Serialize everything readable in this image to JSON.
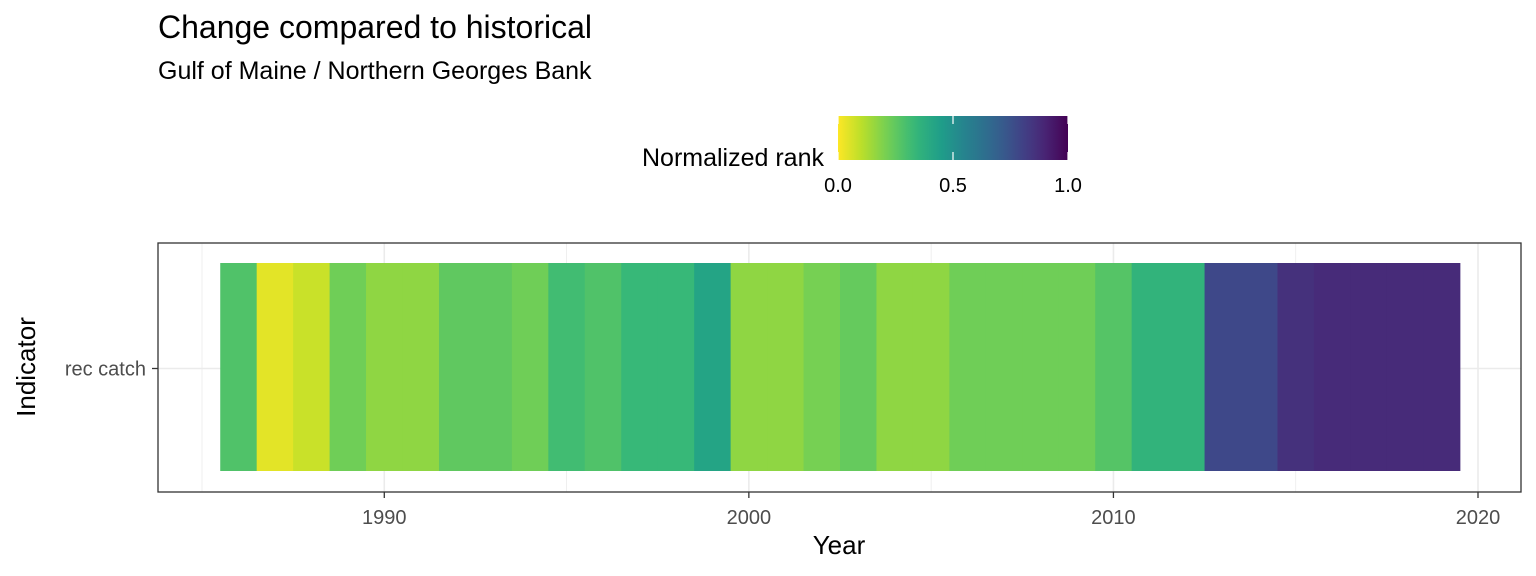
{
  "chart_data": {
    "type": "heatmap",
    "title": "Change compared to historical",
    "subtitle": "Gulf of Maine / Northern Georges Bank",
    "xlabel": "Year",
    "ylabel": "Indicator",
    "xlim": [
      1985,
      2020
    ],
    "x_ticks": [
      1990,
      2000,
      2010,
      2020
    ],
    "categories": [
      "rec catch"
    ],
    "legend": {
      "title": "Normalized rank",
      "position": "top",
      "range": [
        0,
        1
      ],
      "ticks": [
        0.0,
        0.5,
        1.0
      ],
      "tick_labels": [
        "0.0",
        "0.5",
        "1.0"
      ],
      "palette": [
        "#fde725",
        "#b5de2b",
        "#6ece58",
        "#35b779",
        "#1f9e89",
        "#26828e",
        "#31688e",
        "#3e4989",
        "#482878",
        "#440154"
      ]
    },
    "series": [
      {
        "name": "rec catch",
        "x": [
          1986,
          1987,
          1988,
          1989,
          1990,
          1991,
          1992,
          1993,
          1994,
          1995,
          1996,
          1997,
          1998,
          1999,
          2000,
          2001,
          2002,
          2003,
          2004,
          2005,
          2006,
          2007,
          2008,
          2009,
          2010,
          2011,
          2012,
          2013,
          2014,
          2015,
          2016,
          2017,
          2018,
          2019
        ],
        "values": [
          0.28,
          0.04,
          0.08,
          0.22,
          0.17,
          0.17,
          0.25,
          0.25,
          0.22,
          0.31,
          0.28,
          0.33,
          0.33,
          0.42,
          0.17,
          0.17,
          0.21,
          0.24,
          0.17,
          0.17,
          0.22,
          0.22,
          0.22,
          0.22,
          0.27,
          0.35,
          0.35,
          0.78,
          0.78,
          0.86,
          0.88,
          0.88,
          0.88,
          0.88
        ]
      }
    ],
    "grid": true
  }
}
